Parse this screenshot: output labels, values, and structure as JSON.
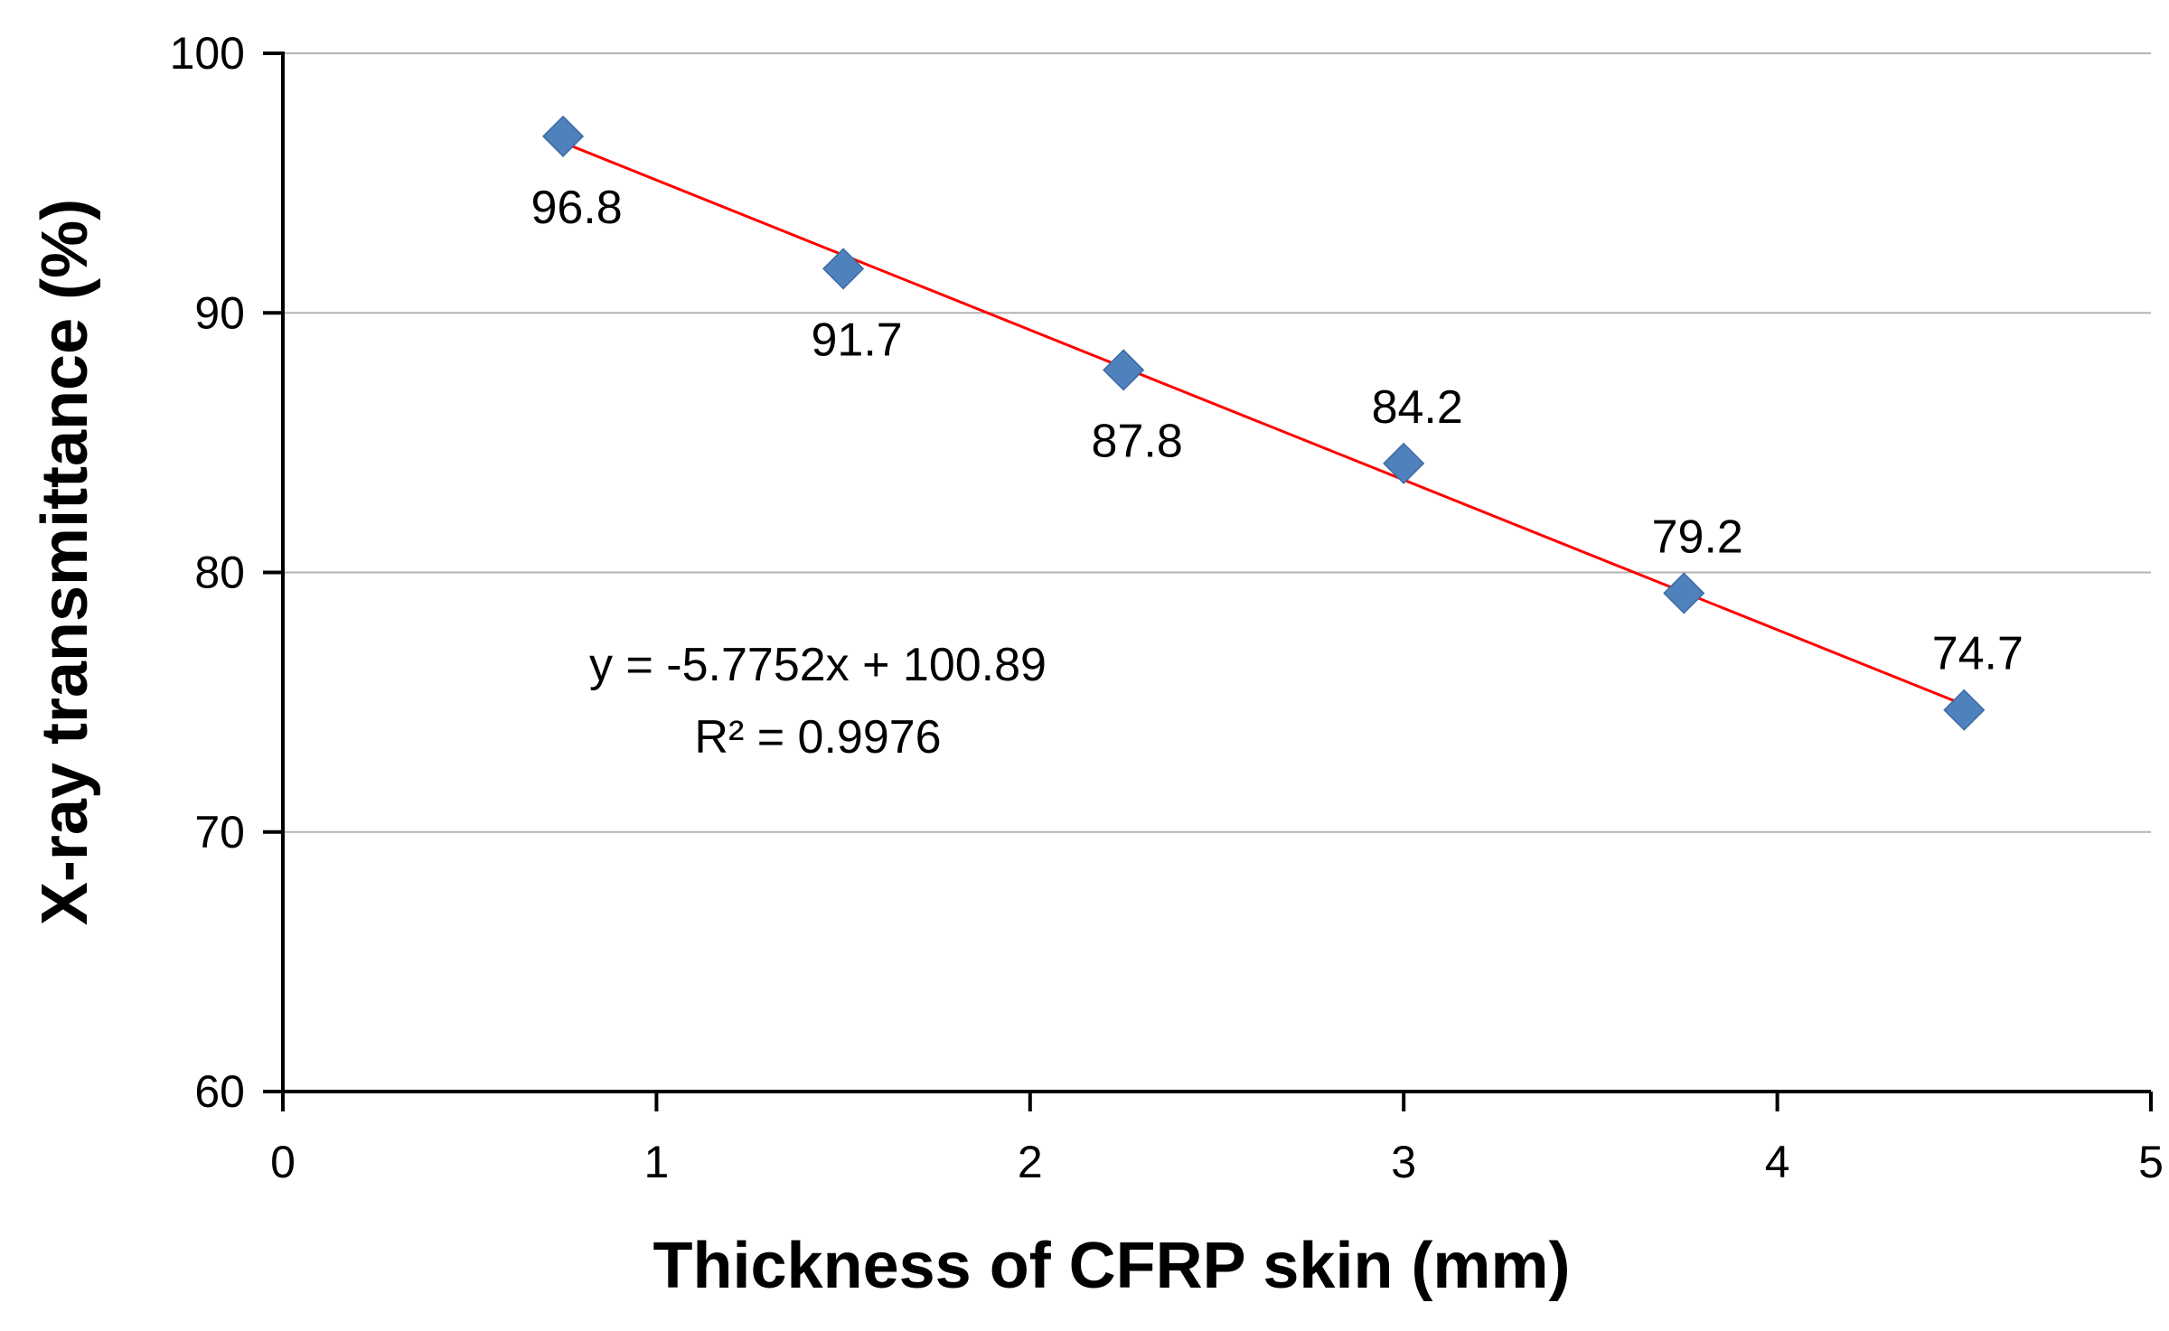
{
  "chart_data": {
    "type": "scatter",
    "title": "",
    "xlabel": "Thickness of CFRP skin (mm)",
    "ylabel": "X-ray transmittance (%)",
    "xlim": [
      0,
      5
    ],
    "ylim": [
      60,
      100
    ],
    "x_ticks": [
      0,
      1,
      2,
      3,
      4,
      5
    ],
    "y_ticks": [
      60,
      70,
      80,
      90,
      100
    ],
    "x_tick_labels": [
      "0",
      "1",
      "2",
      "3",
      "4",
      "5"
    ],
    "y_tick_labels": [
      "60",
      "70",
      "80",
      "90",
      "100"
    ],
    "grid": "horizontal",
    "series": [
      {
        "name": "X-ray transmittance",
        "marker": "diamond",
        "color": "#4f81bd",
        "x": [
          0.75,
          1.5,
          2.25,
          3.0,
          3.75,
          4.5
        ],
        "y": [
          96.8,
          91.7,
          87.8,
          84.2,
          79.2,
          74.7
        ],
        "labels": [
          "96.8",
          "91.7",
          "87.8",
          "84.2",
          "79.2",
          "74.7"
        ],
        "label_positions": [
          "below",
          "below",
          "below",
          "above",
          "above",
          "above"
        ]
      }
    ],
    "trendline": {
      "type": "linear",
      "color": "#ff0000",
      "slope": -5.7752,
      "intercept": 100.89,
      "x_range": [
        0.75,
        4.5
      ],
      "equation_text": "y = -5.7752x + 100.89",
      "r2_text": "R² = 0.9976"
    }
  }
}
